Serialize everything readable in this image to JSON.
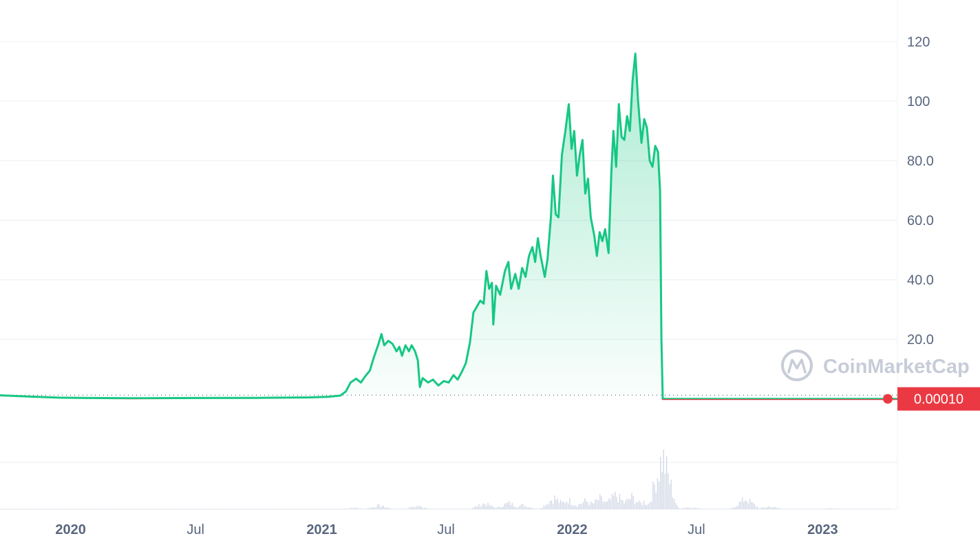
{
  "watermark": "CoinMarketCap",
  "current_price_label": "0.00010",
  "colors": {
    "up": "#16c784",
    "down": "#ea3943",
    "grid": "#eff2f5",
    "axis_text": "#58667e",
    "volume": "#cfd6e4",
    "watermark": "#c5cad6"
  },
  "chart_data": {
    "type": "area",
    "title": "",
    "xlabel": "",
    "ylabel": "",
    "ylim": [
      -1,
      134
    ],
    "yticks": [
      "20.0",
      "40.0",
      "60.0",
      "80.0",
      "100",
      "120"
    ],
    "yticks_values": [
      20,
      40,
      60,
      80,
      100,
      120
    ],
    "xticks": [
      {
        "label": "2020",
        "date": "2020-01-01",
        "bold": true
      },
      {
        "label": "Jul",
        "date": "2020-07-01",
        "bold": false
      },
      {
        "label": "2021",
        "date": "2021-01-01",
        "bold": true
      },
      {
        "label": "Jul",
        "date": "2021-07-01",
        "bold": false
      },
      {
        "label": "2022",
        "date": "2022-01-01",
        "bold": true
      },
      {
        "label": "Jul",
        "date": "2022-07-01",
        "bold": false
      },
      {
        "label": "2023",
        "date": "2023-01-01",
        "bold": true
      }
    ],
    "xlim": [
      "2019-09-20",
      "2023-04-20"
    ],
    "baseline_value": 1.25,
    "current_value": 0.0001,
    "series": [
      {
        "color_up": "#16c784",
        "color_down": "#ea3943",
        "points": [
          [
            "2019-09-20",
            1.2
          ],
          [
            "2019-11-01",
            0.8
          ],
          [
            "2019-12-15",
            0.4
          ],
          [
            "2020-02-01",
            0.3
          ],
          [
            "2020-04-01",
            0.2
          ],
          [
            "2020-07-01",
            0.3
          ],
          [
            "2020-10-01",
            0.35
          ],
          [
            "2020-12-15",
            0.5
          ],
          [
            "2021-01-10",
            0.7
          ],
          [
            "2021-01-28",
            1.1
          ],
          [
            "2021-02-05",
            2.5
          ],
          [
            "2021-02-12",
            5.5
          ],
          [
            "2021-02-20",
            6.8
          ],
          [
            "2021-02-27",
            5.5
          ],
          [
            "2021-03-05",
            7.5
          ],
          [
            "2021-03-12",
            9.5
          ],
          [
            "2021-03-18",
            14
          ],
          [
            "2021-03-24",
            18
          ],
          [
            "2021-03-29",
            21.8
          ],
          [
            "2021-04-02",
            18
          ],
          [
            "2021-04-08",
            19.5
          ],
          [
            "2021-04-14",
            18.5
          ],
          [
            "2021-04-20",
            16
          ],
          [
            "2021-04-24",
            17.5
          ],
          [
            "2021-04-28",
            14.5
          ],
          [
            "2021-05-03",
            18
          ],
          [
            "2021-05-08",
            16
          ],
          [
            "2021-05-12",
            18
          ],
          [
            "2021-05-17",
            16
          ],
          [
            "2021-05-21",
            13
          ],
          [
            "2021-05-24",
            4
          ],
          [
            "2021-05-28",
            7
          ],
          [
            "2021-06-05",
            5.5
          ],
          [
            "2021-06-12",
            6.5
          ],
          [
            "2021-06-20",
            4.5
          ],
          [
            "2021-06-28",
            6
          ],
          [
            "2021-07-05",
            5.5
          ],
          [
            "2021-07-12",
            8
          ],
          [
            "2021-07-18",
            6.5
          ],
          [
            "2021-07-24",
            9
          ],
          [
            "2021-07-30",
            12
          ],
          [
            "2021-08-05",
            19
          ],
          [
            "2021-08-10",
            29
          ],
          [
            "2021-08-15",
            31
          ],
          [
            "2021-08-20",
            33
          ],
          [
            "2021-08-25",
            32
          ],
          [
            "2021-08-29",
            43
          ],
          [
            "2021-09-02",
            37
          ],
          [
            "2021-09-06",
            39
          ],
          [
            "2021-09-08",
            25
          ],
          [
            "2021-09-12",
            38
          ],
          [
            "2021-09-18",
            35
          ],
          [
            "2021-09-25",
            43
          ],
          [
            "2021-09-30",
            46
          ],
          [
            "2021-10-04",
            37
          ],
          [
            "2021-10-10",
            42
          ],
          [
            "2021-10-15",
            37
          ],
          [
            "2021-10-20",
            44
          ],
          [
            "2021-10-25",
            41
          ],
          [
            "2021-10-30",
            48
          ],
          [
            "2021-11-04",
            51
          ],
          [
            "2021-11-08",
            46
          ],
          [
            "2021-11-12",
            54
          ],
          [
            "2021-11-16",
            48
          ],
          [
            "2021-11-22",
            41
          ],
          [
            "2021-11-26",
            47
          ],
          [
            "2021-12-01",
            61
          ],
          [
            "2021-12-04",
            75
          ],
          [
            "2021-12-08",
            62
          ],
          [
            "2021-12-12",
            61
          ],
          [
            "2021-12-17",
            82
          ],
          [
            "2021-12-22",
            90
          ],
          [
            "2021-12-27",
            99
          ],
          [
            "2021-12-31",
            84
          ],
          [
            "2022-01-04",
            90
          ],
          [
            "2022-01-08",
            75
          ],
          [
            "2022-01-12",
            82
          ],
          [
            "2022-01-16",
            87
          ],
          [
            "2022-01-20",
            69
          ],
          [
            "2022-01-24",
            74
          ],
          [
            "2022-01-28",
            61
          ],
          [
            "2022-02-02",
            55
          ],
          [
            "2022-02-06",
            48
          ],
          [
            "2022-02-10",
            56
          ],
          [
            "2022-02-14",
            53
          ],
          [
            "2022-02-18",
            57
          ],
          [
            "2022-02-23",
            49
          ],
          [
            "2022-02-27",
            76
          ],
          [
            "2022-03-02",
            90
          ],
          [
            "2022-03-06",
            78
          ],
          [
            "2022-03-10",
            99
          ],
          [
            "2022-03-14",
            88
          ],
          [
            "2022-03-18",
            87
          ],
          [
            "2022-03-22",
            95
          ],
          [
            "2022-03-26",
            90
          ],
          [
            "2022-03-30",
            107
          ],
          [
            "2022-04-03",
            116
          ],
          [
            "2022-04-07",
            100
          ],
          [
            "2022-04-12",
            86
          ],
          [
            "2022-04-16",
            94
          ],
          [
            "2022-04-20",
            91
          ],
          [
            "2022-04-24",
            80
          ],
          [
            "2022-04-28",
            78
          ],
          [
            "2022-05-02",
            85
          ],
          [
            "2022-05-06",
            83
          ],
          [
            "2022-05-09",
            70
          ],
          [
            "2022-05-11",
            20
          ],
          [
            "2022-05-13",
            0.0001
          ],
          [
            "2022-08-01",
            0.0001
          ],
          [
            "2022-11-01",
            0.0001
          ],
          [
            "2023-04-20",
            0.0001
          ]
        ]
      }
    ],
    "volume": {
      "unit": "relative",
      "points": [
        [
          "2021-02-15",
          0.03
        ],
        [
          "2021-03-25",
          0.07
        ],
        [
          "2021-05-20",
          0.06
        ],
        [
          "2021-08-25",
          0.11
        ],
        [
          "2021-09-30",
          0.12
        ],
        [
          "2021-10-20",
          0.08
        ],
        [
          "2021-12-05",
          0.22
        ],
        [
          "2021-12-25",
          0.18
        ],
        [
          "2022-01-20",
          0.16
        ],
        [
          "2022-02-10",
          0.2
        ],
        [
          "2022-03-05",
          0.27
        ],
        [
          "2022-03-28",
          0.23
        ],
        [
          "2022-04-15",
          0.14
        ],
        [
          "2022-05-10",
          0.55
        ],
        [
          "2022-05-12",
          1.0
        ],
        [
          "2022-05-16",
          0.25
        ],
        [
          "2022-06-20",
          0.04
        ],
        [
          "2022-09-10",
          0.2
        ],
        [
          "2022-10-15",
          0.05
        ],
        [
          "2023-01-15",
          0.02
        ]
      ]
    }
  }
}
